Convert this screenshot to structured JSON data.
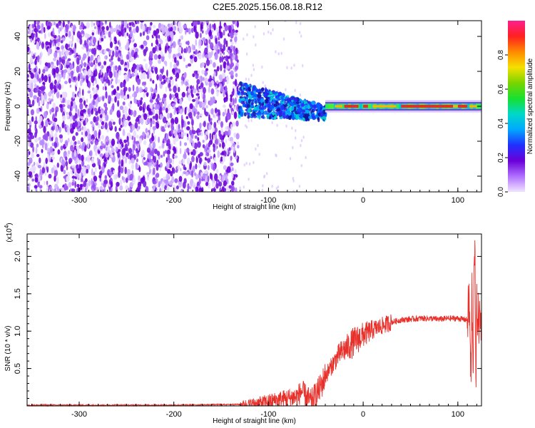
{
  "title": "C2E5.2025.156.08.18.R12",
  "chart_data": [
    {
      "type": "heatmap",
      "xlabel": "Height of straight line (km)",
      "ylabel": "Frequency (Hz)",
      "xlim": [
        -355,
        125
      ],
      "ylim": [
        -49,
        49
      ],
      "xticks": [
        -300,
        -200,
        -100,
        0,
        100
      ],
      "yticks": [
        -40,
        -20,
        0,
        20,
        40
      ],
      "colorbar": {
        "label": "Normalized spectral amplitude",
        "range": [
          0.0,
          1.0
        ],
        "ticks": [
          "0.0",
          "0.2",
          "0.4",
          "0.6",
          "0.8"
        ],
        "colors": [
          "#ff1f8f",
          "#ff2020",
          "#ff8a00",
          "#f5e000",
          "#7ad400",
          "#16e030",
          "#00d8c8",
          "#00a8ff",
          "#2030ff",
          "#6a00d8",
          "#b070ff",
          "#f0e4ff"
        ]
      },
      "regions": [
        {
          "name": "noise",
          "x": [
            -355,
            -132
          ],
          "freq": [
            -49,
            49
          ],
          "amplitude": 0.05
        },
        {
          "name": "onset",
          "x": [
            -132,
            -60
          ],
          "freq": [
            -8,
            12
          ],
          "amplitude": 0.3
        },
        {
          "name": "transition",
          "x": [
            -60,
            -40
          ],
          "freq": [
            -10,
            0
          ],
          "amplitude": 0.45
        },
        {
          "name": "signal",
          "x": [
            -40,
            125
          ],
          "freq": [
            -3,
            3
          ],
          "amplitude": 0.9
        }
      ]
    },
    {
      "type": "line",
      "xlabel": "Height of straight line (km)",
      "ylabel": "SNR (10 * v/v)",
      "y_scale_label": "(x10",
      "y_scale_exp": "4",
      "xlim": [
        -355,
        125
      ],
      "ylim": [
        0,
        2.3
      ],
      "xticks": [
        -300,
        -200,
        -100,
        0,
        100
      ],
      "yticks": [
        "0.5",
        "1.0",
        "1.5",
        "2.0"
      ],
      "color": "#e8302a",
      "series": [
        {
          "x": [
            -355,
            -300,
            -200,
            -130,
            -110,
            -100,
            -90,
            -80,
            -70,
            -65,
            -60,
            -55,
            -50,
            -45,
            -40,
            -35,
            -30,
            -25,
            -20,
            -15,
            -10,
            -5,
            0,
            5,
            10,
            20,
            30,
            40,
            50,
            60,
            70,
            80,
            90,
            100,
            105,
            110,
            112,
            114,
            115,
            116,
            117,
            118,
            119,
            120,
            122,
            125
          ],
          "y": [
            0.01,
            0.01,
            0.01,
            0.02,
            0.04,
            0.06,
            0.08,
            0.1,
            0.12,
            0.2,
            0.12,
            0.05,
            0.15,
            0.25,
            0.4,
            0.5,
            0.6,
            0.7,
            0.75,
            0.8,
            0.85,
            0.9,
            0.95,
            0.98,
            1.02,
            1.07,
            1.12,
            1.15,
            1.16,
            1.17,
            1.17,
            1.16,
            1.17,
            1.17,
            1.16,
            1.15,
            1.4,
            0.3,
            1.6,
            0.25,
            1.9,
            2.28,
            0.2,
            1.3,
            1.15,
            1.12
          ]
        }
      ]
    }
  ]
}
